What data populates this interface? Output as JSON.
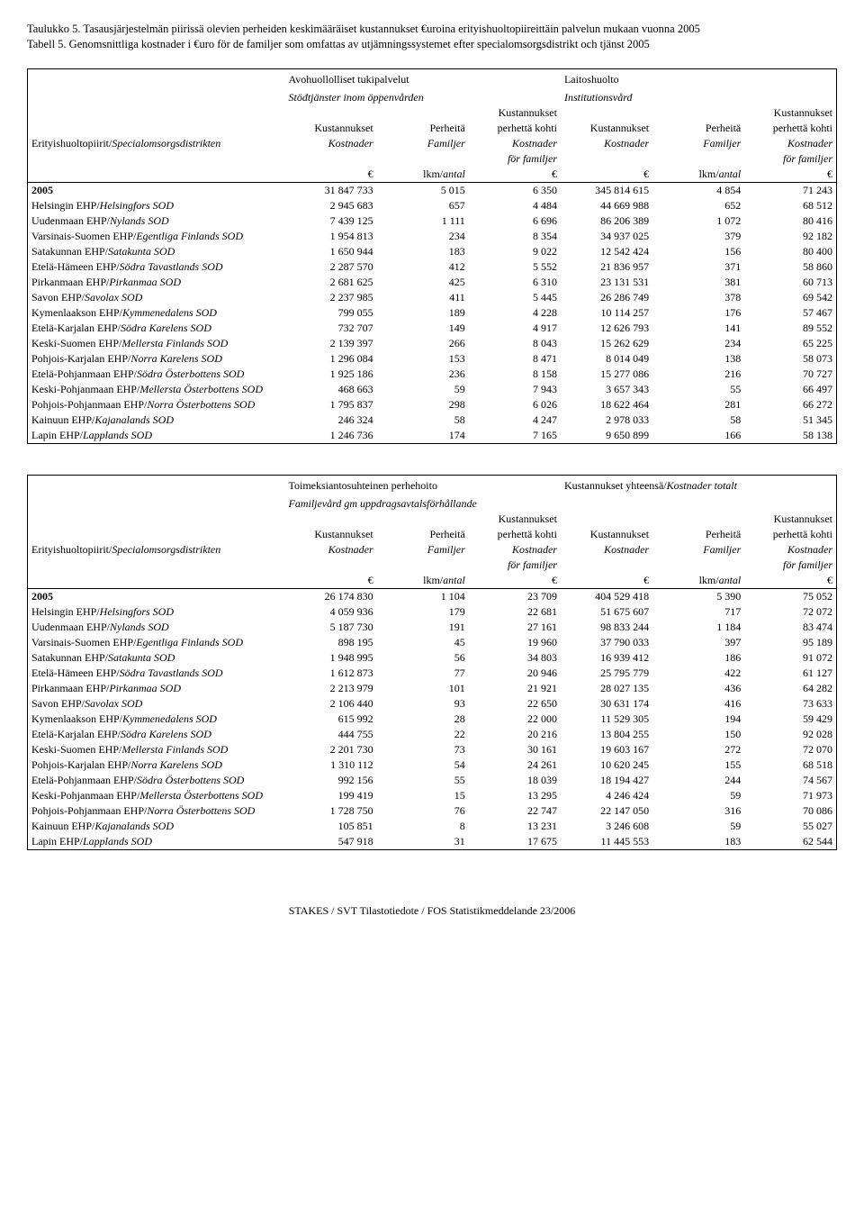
{
  "title": {
    "fi": "Taulukko 5. Tasausjärjestelmän piirissä olevien perheiden keskimääräiset kustannukset €uroina erityishuoltopiireittäin palvelun mukaan vuonna 2005",
    "sv": "Tabell 5. Genomsnittliga kostnader i €uro för de familjer som omfattas av utjämningssystemet efter specialomsorgsdistrikt och tjänst 2005"
  },
  "header_labels": {
    "district": "Erityishuoltopiirit/",
    "district_it": "Specialomsorgsdistrikten",
    "kust": "Kustannukset",
    "kost": "Kostnader",
    "perh": "Perheitä",
    "fam": "Familjer",
    "kust_per": "Kustannukset",
    "kust_per2": "perhettä kohti",
    "kost_per1": "Kostnader",
    "kost_per2": "för familjer",
    "euro": "€",
    "lkm": "lkm/",
    "antal": "antal"
  },
  "groups_t1": {
    "g1a": "Avohuollolliset tukipalvelut",
    "g1b": "Stödtjänster inom öppenvården",
    "g2a": "Laitoshuolto",
    "g2b": "Institutionsvård"
  },
  "groups_t2": {
    "g1a": "Toimeksiantosuhteinen  perhehoito",
    "g1b": "Familjevård gm uppdragsavtalsförhållande",
    "g2a": "Kustannukset yhteensä/",
    "g2b": "Kostnader totalt"
  },
  "row_labels": [
    "2005",
    "Helsingin EHP/Helsingfors SOD",
    "Uudenmaan EHP/Nylands SOD",
    "Varsinais-Suomen EHP/Egentliga Finlands SOD",
    "Satakunnan EHP/Satakunta SOD",
    "Etelä-Hämeen EHP/Södra Tavastlands SOD",
    "Pirkanmaan EHP/Pirkanmaa SOD",
    "Savon EHP/Savolax SOD",
    "Kymenlaakson EHP/Kymmenedalens SOD",
    "Etelä-Karjalan EHP/Södra Karelens SOD",
    "Keski-Suomen EHP/Mellersta Finlands SOD",
    "Pohjois-Karjalan EHP/Norra Karelens SOD",
    "Etelä-Pohjanmaan EHP/Södra Österbottens SOD",
    "Keski-Pohjanmaan EHP/Mellersta Österbottens SOD",
    "Pohjois-Pohjanmaan EHP/Norra Österbottens SOD",
    "Kainuun EHP/Kajanalands SOD",
    "Lapin EHP/Lapplands SOD"
  ],
  "row_italic_from": [
    "Helsingfors SOD",
    "Nylands SOD",
    "Egentliga Finlands SOD",
    "Satakunta SOD",
    "Södra Tavastlands SOD",
    "Pirkanmaa SOD",
    "Savolax SOD",
    "Kymmenedalens SOD",
    "Södra Karelens SOD",
    "Mellersta Finlands SOD",
    "Norra Karelens SOD",
    "Södra Österbottens SOD",
    "Mellersta Österbottens SOD",
    "Norra Österbottens SOD",
    "Kajanalands SOD",
    "Lapplands SOD"
  ],
  "t1": [
    [
      "31 847 733",
      "5 015",
      "6 350",
      "345 814 615",
      "4 854",
      "71 243"
    ],
    [
      "2 945 683",
      "657",
      "4 484",
      "44 669 988",
      "652",
      "68 512"
    ],
    [
      "7 439 125",
      "1 111",
      "6 696",
      "86 206 389",
      "1 072",
      "80 416"
    ],
    [
      "1 954 813",
      "234",
      "8 354",
      "34 937 025",
      "379",
      "92 182"
    ],
    [
      "1 650 944",
      "183",
      "9 022",
      "12 542 424",
      "156",
      "80 400"
    ],
    [
      "2 287 570",
      "412",
      "5 552",
      "21 836 957",
      "371",
      "58 860"
    ],
    [
      "2 681 625",
      "425",
      "6 310",
      "23 131 531",
      "381",
      "60 713"
    ],
    [
      "2 237 985",
      "411",
      "5 445",
      "26 286 749",
      "378",
      "69 542"
    ],
    [
      "799 055",
      "189",
      "4 228",
      "10 114 257",
      "176",
      "57 467"
    ],
    [
      "732 707",
      "149",
      "4 917",
      "12 626 793",
      "141",
      "89 552"
    ],
    [
      "2 139 397",
      "266",
      "8 043",
      "15 262 629",
      "234",
      "65 225"
    ],
    [
      "1 296 084",
      "153",
      "8 471",
      "8 014 049",
      "138",
      "58 073"
    ],
    [
      "1 925 186",
      "236",
      "8 158",
      "15 277 086",
      "216",
      "70 727"
    ],
    [
      "468 663",
      "59",
      "7 943",
      "3 657 343",
      "55",
      "66 497"
    ],
    [
      "1 795 837",
      "298",
      "6 026",
      "18 622 464",
      "281",
      "66 272"
    ],
    [
      "246 324",
      "58",
      "4 247",
      "2 978 033",
      "58",
      "51 345"
    ],
    [
      "1 246 736",
      "174",
      "7 165",
      "9 650 899",
      "166",
      "58 138"
    ]
  ],
  "t2": [
    [
      "26 174 830",
      "1 104",
      "23 709",
      "404 529 418",
      "5 390",
      "75 052"
    ],
    [
      "4 059 936",
      "179",
      "22 681",
      "51 675 607",
      "717",
      "72 072"
    ],
    [
      "5 187 730",
      "191",
      "27 161",
      "98 833 244",
      "1 184",
      "83 474"
    ],
    [
      "898 195",
      "45",
      "19 960",
      "37 790 033",
      "397",
      "95 189"
    ],
    [
      "1 948 995",
      "56",
      "34 803",
      "16 939 412",
      "186",
      "91 072"
    ],
    [
      "1 612 873",
      "77",
      "20 946",
      "25 795 779",
      "422",
      "61 127"
    ],
    [
      "2 213 979",
      "101",
      "21 921",
      "28 027 135",
      "436",
      "64 282"
    ],
    [
      "2 106 440",
      "93",
      "22 650",
      "30 631 174",
      "416",
      "73 633"
    ],
    [
      "615 992",
      "28",
      "22 000",
      "11 529 305",
      "194",
      "59 429"
    ],
    [
      "444 755",
      "22",
      "20 216",
      "13 804 255",
      "150",
      "92 028"
    ],
    [
      "2 201 730",
      "73",
      "30 161",
      "19 603 167",
      "272",
      "72 070"
    ],
    [
      "1 310 112",
      "54",
      "24 261",
      "10 620 245",
      "155",
      "68 518"
    ],
    [
      "992 156",
      "55",
      "18 039",
      "18 194 427",
      "244",
      "74 567"
    ],
    [
      "199 419",
      "15",
      "13 295",
      "4 246 424",
      "59",
      "71 973"
    ],
    [
      "1 728 750",
      "76",
      "22 747",
      "22 147 050",
      "316",
      "70 086"
    ],
    [
      "105 851",
      "8",
      "13 231",
      "3 246 608",
      "59",
      "55 027"
    ],
    [
      "547 918",
      "31",
      "17 675",
      "11 445 553",
      "183",
      "62 544"
    ]
  ],
  "footer": "STAKES / SVT Tilastotiedote / FOS Statistikmeddelande 23/2006"
}
